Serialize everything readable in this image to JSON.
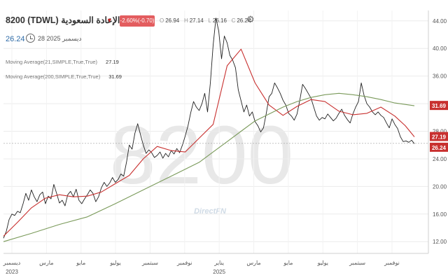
{
  "header": {
    "symbol": "8200",
    "market": "(TDWL)",
    "name": "الإعادة السعودية",
    "change_text": "-2.60%(-0.70)",
    "ohlc": [
      {
        "label": "O",
        "value": "26.94"
      },
      {
        "label": "H",
        "value": "27.14"
      },
      {
        "label": "L",
        "value": "26.16"
      },
      {
        "label": "C",
        "value": "26.24"
      }
    ],
    "last_price": "26.24",
    "date_text": "28 ديسمبر 2025"
  },
  "indicators": [
    {
      "label": "Moving Average(21,SIMPLE,True,True)",
      "value": "27.19",
      "color": "#c8302f"
    },
    {
      "label": "Moving Average(200,SIMPLE,True,True)",
      "value": "31.69",
      "color": "#7a9a5a"
    }
  ],
  "watermark": {
    "symbol": "8200",
    "brand": "DirectFN"
  },
  "chart_data": {
    "type": "line",
    "title": "8200 (TDWL) الإعادة السعودية",
    "y_ticks": [
      "12.00",
      "16.00",
      "20.00",
      "24.00",
      "28.00",
      "32.00",
      "36.00",
      "40.00",
      "44.00"
    ],
    "ylim": [
      10.3,
      45.5
    ],
    "y_axis_side": "right",
    "x_ticks": [
      "ديسمبر",
      "مارس",
      "مايو",
      "يوليو",
      "سبتمبر",
      "نوفمبر",
      "يناير",
      "مارس",
      "مايو",
      "يوليو",
      "سبتمبر",
      "نوفمبر"
    ],
    "x_years": [
      {
        "label": "2023",
        "at": "ديسمبر"
      },
      {
        "label": "2025",
        "at": "يناير"
      }
    ],
    "grid": true,
    "price_color": "#1f3a1f",
    "series": [
      {
        "name": "",
        "color": "#222222",
        "x": [
          0,
          4,
          8,
          12,
          16,
          20,
          24,
          28,
          32,
          36,
          40,
          44,
          48,
          52,
          56,
          60,
          64,
          68,
          72,
          76,
          80,
          84,
          88,
          92,
          96,
          100,
          104,
          108,
          112,
          116,
          120,
          124,
          128,
          132,
          136,
          140,
          144,
          148,
          152,
          156,
          160,
          164,
          168,
          172,
          176,
          180,
          184,
          188,
          192,
          196,
          200,
          204,
          208,
          212,
          216,
          220,
          224,
          228,
          232,
          236,
          240,
          244,
          248,
          252,
          256,
          260,
          264,
          268,
          272,
          276,
          280,
          284,
          288,
          292,
          296,
          300,
          304,
          308,
          312,
          316,
          320,
          324,
          328,
          332,
          336,
          340,
          344,
          348,
          352,
          356,
          360,
          364,
          368,
          372,
          376,
          380,
          384,
          388,
          392,
          396,
          400,
          404,
          408,
          412,
          416,
          420,
          424,
          428,
          432,
          436,
          440,
          444,
          448,
          452,
          456,
          460,
          464,
          468,
          472,
          476,
          480,
          484,
          488,
          492,
          496,
          500,
          504,
          508,
          512,
          516,
          520,
          524,
          528,
          532,
          536,
          540,
          544,
          548,
          552,
          556,
          560,
          564,
          568,
          572,
          576,
          580,
          584,
          588
        ],
        "y": [
          12.5,
          13.5,
          15.2,
          16.0,
          15.8,
          16.4,
          16.2,
          17.5,
          19.0,
          18.0,
          19.5,
          18.5,
          17.8,
          18.8,
          19.2,
          17.5,
          18.6,
          18.2,
          20.3,
          19.0,
          17.6,
          18.0,
          17.2,
          18.8,
          19.3,
          18.5,
          19.6,
          18.0,
          17.5,
          18.2,
          18.8,
          19.5,
          19.0,
          17.8,
          18.5,
          19.8,
          20.6,
          20.0,
          20.5,
          21.3,
          20.6,
          21.0,
          21.8,
          21.5,
          23.5,
          26.0,
          25.4,
          27.7,
          29.1,
          27.5,
          26.0,
          24.8,
          25.3,
          24.9,
          24.2,
          24.5,
          25.0,
          24.1,
          24.8,
          24.3,
          25.2,
          24.7,
          25.5,
          24.9,
          26.0,
          27.3,
          28.8,
          30.7,
          32.3,
          31.5,
          31.0,
          32.0,
          33.5,
          30.8,
          35.0,
          40.5,
          44.4,
          42.5,
          38.5,
          41.8,
          40.8,
          39.0,
          38.3,
          37.2,
          34.0,
          32.4,
          30.8,
          31.8,
          30.2,
          30.8,
          29.4,
          28.8,
          27.9,
          28.5,
          30.6,
          33.0,
          33.5,
          35.0,
          34.3,
          33.5,
          32.5,
          31.8,
          30.6,
          30.2,
          29.6,
          30.5,
          32.5,
          34.8,
          34.2,
          33.5,
          32.8,
          31.5,
          30.2,
          29.6,
          30.0,
          29.8,
          30.5,
          30.0,
          29.5,
          29.9,
          30.6,
          31.2,
          30.3,
          29.7,
          29.2,
          30.5,
          31.5,
          32.3,
          35.0,
          33.2,
          32.0,
          31.5,
          30.8,
          30.4,
          30.8,
          30.3,
          30.0,
          29.2,
          28.5,
          29.8,
          29.0,
          28.4,
          27.2,
          26.5,
          26.6,
          26.4,
          26.7,
          26.2
        ]
      },
      {
        "name": "Moving Average(21,SIMPLE,True,True)",
        "color": "#c8302f",
        "x": [
          0,
          20,
          40,
          60,
          80,
          100,
          120,
          140,
          160,
          180,
          200,
          220,
          240,
          260,
          280,
          300,
          320,
          340,
          360,
          380,
          400,
          420,
          440,
          460,
          480,
          500,
          520,
          540,
          560,
          575,
          588
        ],
        "y": [
          12.8,
          14.8,
          16.9,
          18.3,
          18.8,
          18.5,
          18.6,
          19.2,
          20.4,
          21.6,
          24.0,
          25.8,
          25.2,
          25.0,
          27.0,
          29.0,
          37.5,
          39.9,
          35.0,
          31.8,
          30.3,
          31.6,
          32.6,
          32.3,
          30.9,
          30.4,
          30.6,
          31.5,
          30.2,
          28.8,
          27.19
        ]
      },
      {
        "name": "Moving Average(200,SIMPLE,True,True)",
        "color": "#7a9a5a",
        "x": [
          0,
          40,
          80,
          120,
          160,
          200,
          240,
          280,
          300,
          320,
          340,
          360,
          380,
          400,
          420,
          440,
          460,
          480,
          500,
          520,
          540,
          560,
          588
        ],
        "y": [
          12.0,
          13.2,
          14.5,
          15.6,
          17.5,
          19.5,
          21.5,
          23.5,
          25.0,
          26.5,
          28.0,
          29.5,
          30.5,
          31.5,
          32.3,
          32.9,
          33.3,
          33.5,
          33.3,
          33.0,
          32.6,
          32.1,
          31.69
        ]
      }
    ],
    "last_value_labels": [
      {
        "value": "31.69",
        "color": "#c8302f"
      },
      {
        "value": "27.19",
        "color": "#c8302f"
      },
      {
        "value": "26.24",
        "color": "#c8302f"
      }
    ]
  }
}
